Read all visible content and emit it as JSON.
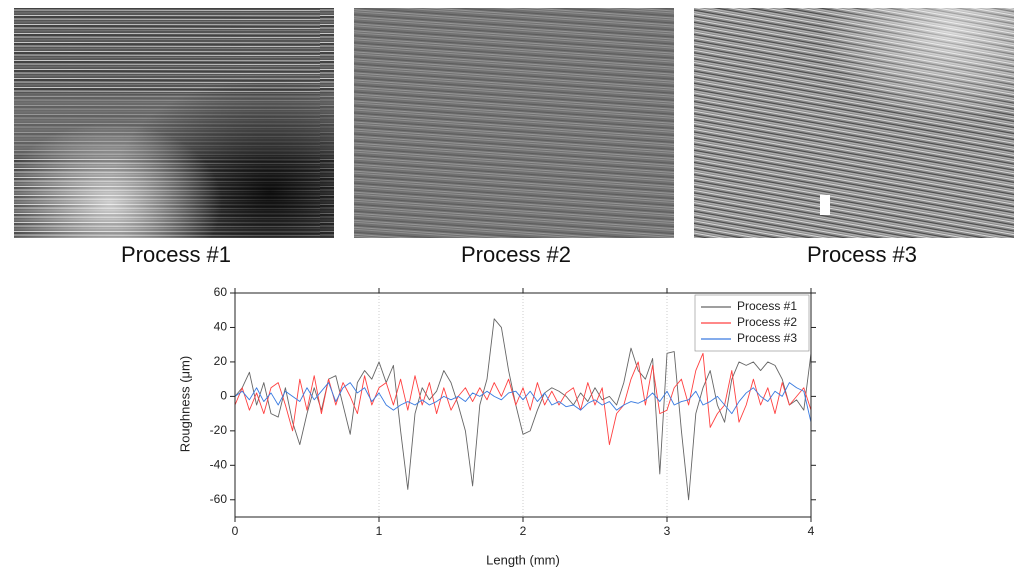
{
  "images": [
    {
      "caption": "Process #1"
    },
    {
      "caption": "Process #2"
    },
    {
      "caption": "Process #3"
    }
  ],
  "chart_data": {
    "type": "line",
    "x_label": "Length (mm)",
    "y_label": "Roughness (μm)",
    "xlim": [
      0,
      4
    ],
    "xticks": [
      0,
      1,
      2,
      3,
      4
    ],
    "ylim": [
      -70,
      60
    ],
    "yticks": [
      -60,
      -40,
      -20,
      0,
      20,
      40,
      60
    ],
    "grid": true,
    "legend": "upper right",
    "x": [
      0,
      0.05,
      0.1,
      0.15,
      0.2,
      0.25,
      0.3,
      0.35,
      0.4,
      0.45,
      0.5,
      0.55,
      0.6,
      0.65,
      0.7,
      0.75,
      0.8,
      0.85,
      0.9,
      0.95,
      1,
      1.05,
      1.1,
      1.15,
      1.2,
      1.25,
      1.3,
      1.35,
      1.4,
      1.45,
      1.5,
      1.55,
      1.6,
      1.65,
      1.7,
      1.75,
      1.8,
      1.85,
      1.9,
      1.95,
      2,
      2.05,
      2.1,
      2.15,
      2.2,
      2.25,
      2.3,
      2.35,
      2.4,
      2.45,
      2.5,
      2.55,
      2.6,
      2.65,
      2.7,
      2.75,
      2.8,
      2.85,
      2.9,
      2.95,
      3,
      3.05,
      3.1,
      3.15,
      3.2,
      3.25,
      3.3,
      3.35,
      3.4,
      3.45,
      3.5,
      3.55,
      3.6,
      3.65,
      3.7,
      3.75,
      3.8,
      3.85,
      3.9,
      3.95,
      4
    ],
    "series": [
      {
        "name": "Process #1",
        "color": "#666666",
        "values": [
          0,
          5,
          14,
          -5,
          8,
          -10,
          -12,
          5,
          -15,
          -28,
          -10,
          5,
          -8,
          10,
          12,
          -5,
          -22,
          8,
          15,
          10,
          20,
          8,
          18,
          -20,
          -54,
          -10,
          5,
          -2,
          3,
          15,
          8,
          -5,
          -20,
          -52,
          -5,
          10,
          45,
          40,
          15,
          -5,
          -22,
          -20,
          -8,
          2,
          5,
          3,
          0,
          -5,
          2,
          -3,
          5,
          -2,
          0,
          -5,
          8,
          28,
          15,
          10,
          22,
          -45,
          25,
          26,
          -20,
          -60,
          -10,
          5,
          15,
          -5,
          -15,
          10,
          20,
          18,
          20,
          15,
          20,
          18,
          10,
          -5,
          -2,
          -8,
          25
        ]
      },
      {
        "name": "Process #2",
        "color": "#ff4040",
        "values": [
          -5,
          5,
          -8,
          2,
          -10,
          5,
          8,
          -5,
          -20,
          10,
          -8,
          12,
          -10,
          10,
          -5,
          8,
          0,
          -10,
          12,
          -5,
          5,
          8,
          -5,
          10,
          -8,
          12,
          -5,
          8,
          -10,
          5,
          -8,
          0,
          5,
          -3,
          5,
          -2,
          8,
          0,
          10,
          -5,
          5,
          -8,
          8,
          -5,
          3,
          -5,
          2,
          5,
          -8,
          8,
          -5,
          5,
          -28,
          -10,
          -5,
          10,
          20,
          -5,
          18,
          -10,
          -8,
          5,
          10,
          -5,
          15,
          25,
          -18,
          -10,
          -5,
          15,
          -15,
          -5,
          10,
          -5,
          5,
          -10,
          8,
          -5,
          0,
          5,
          -8
        ]
      },
      {
        "name": "Process #3",
        "color": "#3a7be0",
        "values": [
          0,
          3,
          -2,
          5,
          -3,
          2,
          -5,
          3,
          0,
          -3,
          5,
          -2,
          3,
          8,
          -3,
          5,
          8,
          2,
          5,
          -3,
          2,
          -5,
          -8,
          -5,
          -3,
          -5,
          -2,
          -5,
          -3,
          0,
          -2,
          0,
          -3,
          2,
          0,
          3,
          0,
          -2,
          2,
          3,
          -2,
          3,
          -3,
          2,
          -5,
          -3,
          -6,
          -5,
          -8,
          -4,
          -2,
          -5,
          -3,
          -8,
          -5,
          -3,
          -4,
          -2,
          2,
          -3,
          3,
          -5,
          -3,
          -2,
          3,
          -5,
          -3,
          0,
          -5,
          -10,
          -3,
          2,
          5,
          0,
          -3,
          3,
          0,
          8,
          5,
          3,
          -15
        ]
      }
    ]
  }
}
